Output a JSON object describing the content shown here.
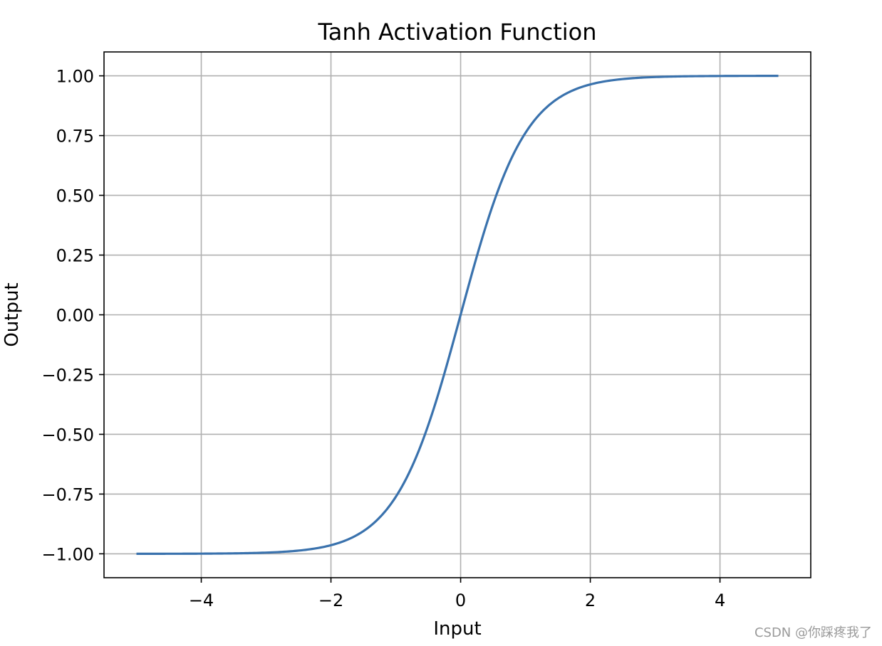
{
  "chart_data": {
    "type": "line",
    "title": "Tanh Activation Function",
    "xlabel": "Input",
    "ylabel": "Output",
    "xlim": [
      -5.5,
      5.4
    ],
    "ylim": [
      -1.1,
      1.1
    ],
    "xticks": [
      {
        "value": -4,
        "label": "−4"
      },
      {
        "value": -2,
        "label": "−2"
      },
      {
        "value": 0,
        "label": "0"
      },
      {
        "value": 2,
        "label": "2"
      },
      {
        "value": 4,
        "label": "4"
      }
    ],
    "yticks": [
      {
        "value": 1.0,
        "label": "1.00"
      },
      {
        "value": 0.75,
        "label": "0.75"
      },
      {
        "value": 0.5,
        "label": "0.50"
      },
      {
        "value": 0.25,
        "label": "0.25"
      },
      {
        "value": 0.0,
        "label": "0.00"
      },
      {
        "value": -0.25,
        "label": "−0.25"
      },
      {
        "value": -0.5,
        "label": "−0.50"
      },
      {
        "value": -0.75,
        "label": "−0.75"
      },
      {
        "value": -1.0,
        "label": "−1.00"
      }
    ],
    "grid": true,
    "series": [
      {
        "color": "#3a72ad",
        "function": "tanh",
        "x_range": [
          -5.0,
          4.9
        ],
        "x": [
          -5.0,
          -4.5,
          -4.0,
          -3.5,
          -3.0,
          -2.5,
          -2.0,
          -1.75,
          -1.5,
          -1.25,
          -1.0,
          -0.75,
          -0.5,
          -0.25,
          0.0,
          0.25,
          0.5,
          0.75,
          1.0,
          1.25,
          1.5,
          1.75,
          2.0,
          2.5,
          3.0,
          3.5,
          4.0,
          4.5,
          4.9
        ],
        "y": [
          -0.9999,
          -0.9998,
          -0.9993,
          -0.9982,
          -0.9951,
          -0.9866,
          -0.964,
          -0.9414,
          -0.9051,
          -0.8483,
          -0.7616,
          -0.6351,
          -0.4621,
          -0.2449,
          0.0,
          0.2449,
          0.4621,
          0.6351,
          0.7616,
          0.8483,
          0.9051,
          0.9414,
          0.964,
          0.9866,
          0.9951,
          0.9982,
          0.9993,
          0.9998,
          0.9999
        ]
      }
    ]
  },
  "watermark": "CSDN @你踩疼我了"
}
